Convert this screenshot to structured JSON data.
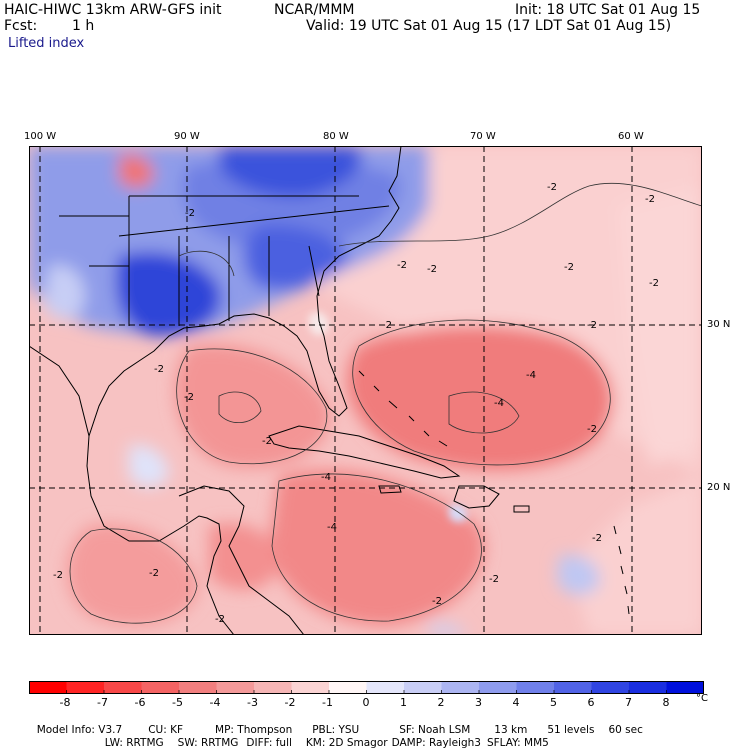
{
  "header": {
    "model_title": "HAIC-HIWC 13km ARW-GFS init",
    "org": "NCAR/MMM",
    "init": "Init: 18 UTC Sat 01 Aug 15",
    "fcst_label": "Fcst:",
    "fcst_value": "1 h",
    "valid": "Valid: 19 UTC Sat 01 Aug 15 (17 LDT Sat 01 Aug 15)",
    "field": "Lifted index"
  },
  "map": {
    "lon_labels": [
      "100 W",
      "90 W",
      "80 W",
      "70 W",
      "60 W"
    ],
    "lat_labels": [
      "30 N",
      "20 N"
    ],
    "contour_labels": [
      "-2",
      "-2",
      "-2",
      "-2",
      "-2",
      "-2",
      "-2",
      "-2",
      "-2",
      "-2",
      "-2",
      "-2",
      "-2",
      "-2",
      "-2",
      "-4",
      "-4",
      "-4",
      "-4",
      "-2",
      "-2",
      "-2",
      "-2"
    ],
    "colors": {
      "land_cold": "#2b3fd6",
      "land_cool": "#8c9ae8",
      "ocean_warm": "#f38a8a",
      "ocean_mild": "#f7b7b7",
      "pale": "#fbdada",
      "border": "#000000",
      "grid": "#000000"
    }
  },
  "colorbar": {
    "labels": [
      "-8",
      "-7",
      "-6",
      "-5",
      "-4",
      "-3",
      "-2",
      "-1",
      "0",
      "1",
      "2",
      "3",
      "4",
      "5",
      "6",
      "7",
      "8"
    ],
    "unit": "°C",
    "colors": [
      "#ff0000",
      "#ff2424",
      "#f84848",
      "#f46464",
      "#f27f7f",
      "#f49a9a",
      "#f6b6b6",
      "#fbd4d4",
      "#fff6f6",
      "#e4e6fb",
      "#c9cef6",
      "#acb5f2",
      "#8f9cee",
      "#7080ea",
      "#5163e6",
      "#3045e2",
      "#1a2ee0",
      "#0010dc"
    ]
  },
  "info": {
    "line1": [
      "Model Info: V3.7",
      "CU: KF",
      "MP: Thompson",
      "PBL: YSU",
      "SF: Noah LSM",
      "13 km",
      "51 levels",
      "60 sec"
    ],
    "line2": [
      "LW: RRTMG",
      "SW: RRTMG",
      "DIFF: full",
      "KM: 2D Smagor",
      "DAMP: Rayleigh3",
      "SFLAY: MM5"
    ]
  }
}
